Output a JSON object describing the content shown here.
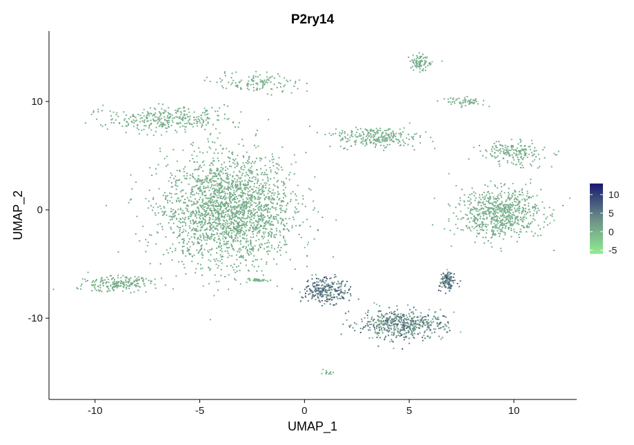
{
  "chart_data": {
    "type": "scatter",
    "title": "P2ry14",
    "xlabel": "UMAP_1",
    "ylabel": "UMAP_2",
    "xlim": [
      -12.2,
      13.0
    ],
    "ylim": [
      -17.5,
      16.5
    ],
    "xticks": [
      -10,
      -5,
      0,
      5,
      10
    ],
    "yticks": [
      -10,
      0,
      10
    ],
    "grid": false,
    "colorbar": {
      "low_color": "#90ee90",
      "mid_color": "#6b8e88",
      "high_color": "#191970",
      "min": -6,
      "max": 13,
      "ticks": [
        10,
        5,
        0,
        -5
      ],
      "placement": "right"
    },
    "clusters": [
      {
        "name": "large-left-mass",
        "center": [
          -3.6,
          0.0
        ],
        "spread": [
          2.6,
          4.2
        ],
        "n": 2200,
        "expr": 0.3
      },
      {
        "name": "upper-left-arm",
        "center": [
          -6.6,
          8.4
        ],
        "spread": [
          2.4,
          0.9
        ],
        "n": 320,
        "expr": 0.2
      },
      {
        "name": "upper-left-top",
        "center": [
          -2.3,
          11.8
        ],
        "spread": [
          1.7,
          0.8
        ],
        "n": 120,
        "expr": 0.4
      },
      {
        "name": "lower-left-tail",
        "center": [
          -9.0,
          -6.8
        ],
        "spread": [
          1.5,
          0.6
        ],
        "n": 200,
        "expr": 0.2
      },
      {
        "name": "top-center-island",
        "center": [
          3.5,
          6.7
        ],
        "spread": [
          1.6,
          0.8
        ],
        "n": 260,
        "expr": 0.2
      },
      {
        "name": "top-right-small",
        "center": [
          5.5,
          13.6
        ],
        "spread": [
          0.5,
          0.6
        ],
        "n": 90,
        "expr": 0.2
      },
      {
        "name": "top-right-streak",
        "center": [
          7.6,
          10.0
        ],
        "spread": [
          0.9,
          0.3
        ],
        "n": 60,
        "expr": 0.3
      },
      {
        "name": "right-mass",
        "center": [
          9.3,
          -0.3
        ],
        "spread": [
          1.7,
          1.9
        ],
        "n": 700,
        "expr": 0.3
      },
      {
        "name": "right-arm",
        "center": [
          10.0,
          5.2
        ],
        "spread": [
          1.3,
          0.9
        ],
        "n": 180,
        "expr": 0.3
      },
      {
        "name": "bottom-center-left",
        "center": [
          1.0,
          -7.4
        ],
        "spread": [
          0.9,
          1.0
        ],
        "n": 260,
        "expr": 5.5
      },
      {
        "name": "bottom-arc",
        "center": [
          4.6,
          -10.6
        ],
        "spread": [
          1.7,
          1.1
        ],
        "n": 520,
        "expr": 3.5
      },
      {
        "name": "bottom-arc-upper",
        "center": [
          6.8,
          -6.6
        ],
        "spread": [
          0.3,
          0.8
        ],
        "n": 120,
        "expr": 5.0
      },
      {
        "name": "bottom-left-islet",
        "center": [
          -2.2,
          -6.5
        ],
        "spread": [
          0.4,
          0.1
        ],
        "n": 30,
        "expr": 0.2
      },
      {
        "name": "bottom-lone-streak",
        "center": [
          1.0,
          -15.0
        ],
        "spread": [
          0.4,
          0.2
        ],
        "n": 12,
        "expr": 0.2
      }
    ]
  }
}
